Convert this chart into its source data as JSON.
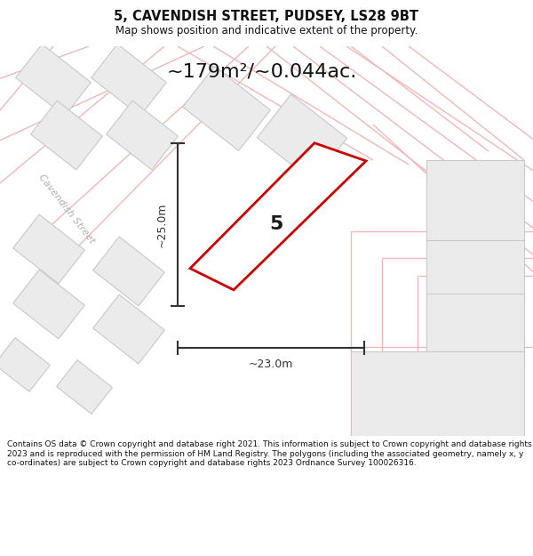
{
  "title": "5, CAVENDISH STREET, PUDSEY, LS28 9BT",
  "subtitle": "Map shows position and indicative extent of the property.",
  "area_text": "~179m²/~0.044ac.",
  "dim_width": "~23.0m",
  "dim_height": "~25.0m",
  "property_number": "5",
  "footer": "Contains OS data © Crown copyright and database right 2021. This information is subject to Crown copyright and database rights 2023 and is reproduced with the permission of HM Land Registry. The polygons (including the associated geometry, namely x, y co-ordinates) are subject to Crown copyright and database rights 2023 Ordnance Survey 100026316.",
  "bg_color": "#ffffff",
  "building_fill": "#ebebeb",
  "building_stroke": "#c8c8c8",
  "road_outline": "#f0b8b8",
  "highlight_fill": "#ffffff",
  "highlight_stroke": "#cc0000",
  "dim_color": "#333333",
  "street_label_color": "#b0b0b0",
  "title_color": "#111111",
  "footer_color": "#111111",
  "title_fontsize": 10.5,
  "subtitle_fontsize": 8.5,
  "area_fontsize": 16,
  "dim_fontsize": 9,
  "footer_fontsize": 6.5
}
